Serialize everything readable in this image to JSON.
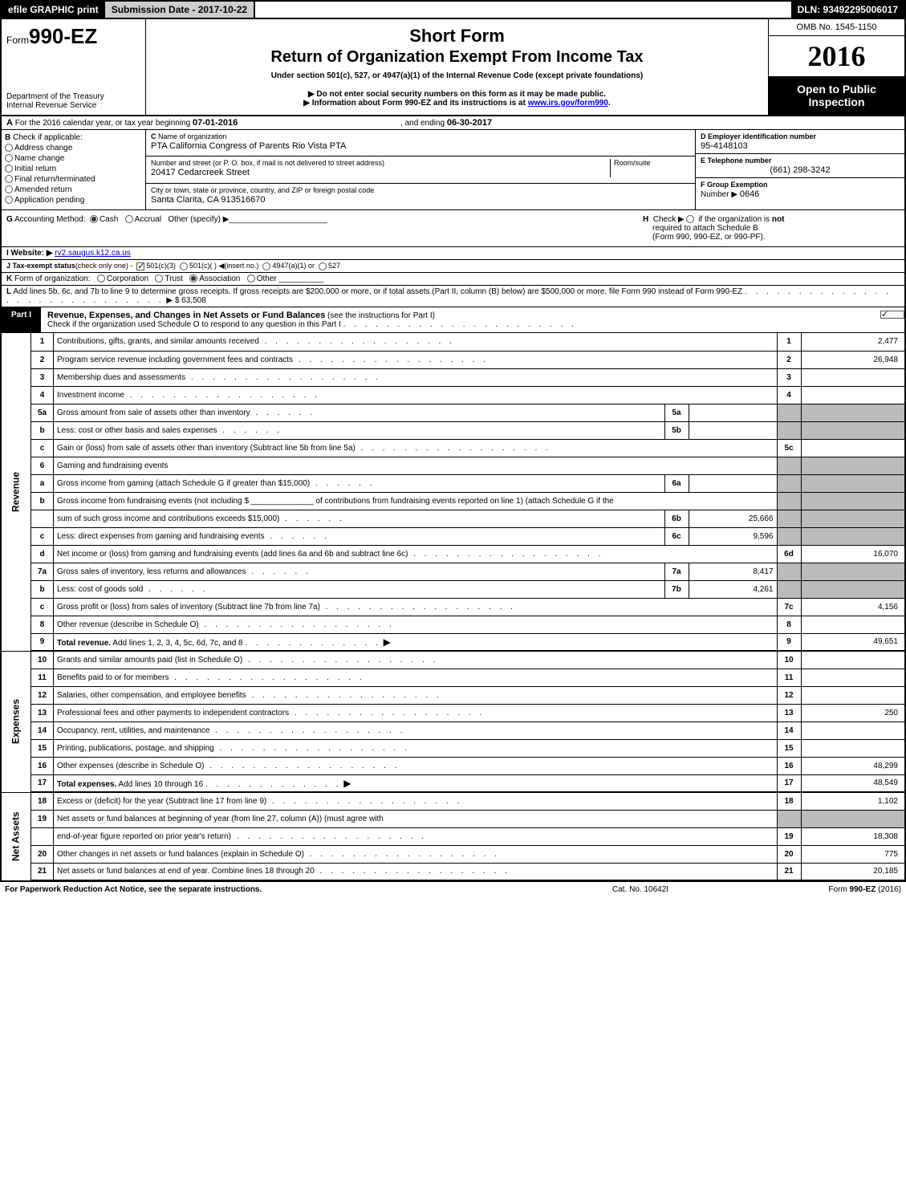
{
  "topbar": {
    "efile": "efile GRAPHIC print",
    "submission_label": "Submission Date - 2017-10-22",
    "dln": "DLN: 93492295006017"
  },
  "header": {
    "form_prefix": "Form",
    "form_number": "990-EZ",
    "dept1": "Department of the Treasury",
    "dept2": "Internal Revenue Service",
    "title1": "Short Form",
    "title2": "Return of Organization Exempt From Income Tax",
    "subtitle1": "Under section 501(c), 527, or 4947(a)(1) of the Internal Revenue Code (except private foundations)",
    "subtitle2a": "▶ Do not enter social security numbers on this form as it may be made public.",
    "subtitle2b": "▶ Information about Form 990-EZ and its instructions is at ",
    "subtitle2b_link": "www.irs.gov/form990",
    "subtitle2b_suffix": ".",
    "omb": "OMB No. 1545-1150",
    "year": "2016",
    "open1": "Open to Public",
    "open2": "Inspection"
  },
  "rowA": {
    "a_label": "A",
    "text1": "For the 2016 calendar year, or tax year beginning ",
    "begin": "07-01-2016",
    "text2": ", and ending ",
    "end": "06-30-2017"
  },
  "colB": {
    "label": "B",
    "heading": "Check if applicable:",
    "opts": [
      "Address change",
      "Name change",
      "Initial return",
      "Final return/terminated",
      "Amended return",
      "Application pending"
    ]
  },
  "colC": {
    "c_label": "C",
    "name_lbl": "Name of organization",
    "name_val": "PTA California Congress of Parents Rio Vista PTA",
    "street_lbl": "Number and street (or P. O. box, if mail is not delivered to street address)",
    "street_val": "20417 Cedarcreek Street",
    "room_lbl": "Room/suite",
    "city_lbl": "City or town, state or province, country, and ZIP or foreign postal code",
    "city_val": "Santa Clarita, CA  913516670"
  },
  "colDEF": {
    "d_lbl": "D Employer identification number",
    "d_val": "95-4148103",
    "e_lbl": "E Telephone number",
    "e_val": "(661) 298-3242",
    "f_lbl": "F Group Exemption",
    "f_lbl2": "Number  ▶",
    "f_val": "0646"
  },
  "rowG": {
    "g_label": "G",
    "g_text": "Accounting Method:",
    "g_cash": "Cash",
    "g_accrual": "Accrual",
    "g_other": "Other (specify) ▶",
    "h_label": "H",
    "h_text1": "Check ▶",
    "h_text2": "if the organization is ",
    "h_not": "not",
    "h_text3": "required to attach Schedule B",
    "h_text4": "(Form 990, 990-EZ, or 990-PF)."
  },
  "rowI": {
    "label": "I Website: ▶",
    "val": "rv2.saugus.k12.ca.us"
  },
  "rowJ": {
    "label": "J Tax-exempt status",
    "sub": "(check only one) -",
    "o1": "501(c)(3)",
    "o2": "501(c)(  ) ◀(insert no.)",
    "o3": "4947(a)(1) or",
    "o4": "527"
  },
  "rowK": {
    "label": "K",
    "text": "Form of organization:",
    "opts": [
      "Corporation",
      "Trust",
      "Association",
      "Other"
    ]
  },
  "rowL": {
    "label": "L",
    "text1": "Add lines 5b, 6c, and 7b to line 9 to determine gross receipts. If gross receipts are $200,000 or more, or if total assets (Part II, column (B) below) are $500,000 or more, file Form 990 instead of Form 990-EZ",
    "amt_label": "▶ $ 63,508"
  },
  "part1": {
    "tag": "Part I",
    "title": "Revenue, Expenses, and Changes in Net Assets or Fund Balances",
    "sub": "(see the instructions for Part I)",
    "check_text": "Check if the organization used Schedule O to respond to any question in this Part I"
  },
  "sideLabels": {
    "rev": "Revenue",
    "exp": "Expenses",
    "net": "Net Assets"
  },
  "lines": [
    {
      "n": "1",
      "d": "Contributions, gifts, grants, and similar amounts received",
      "num": "1",
      "amt": "2,477"
    },
    {
      "n": "2",
      "d": "Program service revenue including government fees and contracts",
      "num": "2",
      "amt": "26,948"
    },
    {
      "n": "3",
      "d": "Membership dues and assessments",
      "num": "3",
      "amt": ""
    },
    {
      "n": "4",
      "d": "Investment income",
      "num": "4",
      "amt": ""
    },
    {
      "n": "5a",
      "d": "Gross amount from sale of assets other than inventory",
      "sub": "5a",
      "subamt": "",
      "grey": true
    },
    {
      "n": "b",
      "d": "Less: cost or other basis and sales expenses",
      "sub": "5b",
      "subamt": "",
      "grey": true
    },
    {
      "n": "c",
      "d": "Gain or (loss) from sale of assets other than inventory (Subtract line 5b from line 5a)",
      "num": "5c",
      "amt": ""
    },
    {
      "n": "6",
      "d": "Gaming and fundraising events",
      "grey": true,
      "nonum": true
    },
    {
      "n": "a",
      "d": "Gross income from gaming (attach Schedule G if greater than $15,000)",
      "sub": "6a",
      "subamt": "",
      "grey": true
    },
    {
      "n": "b",
      "d": "Gross income from fundraising events (not including $ ______________ of contributions from fundraising events reported on line 1) (attach Schedule G if the",
      "grey": true,
      "nonum": true,
      "nosub": true
    },
    {
      "n": "",
      "d": "sum of such gross income and contributions exceeds $15,000)",
      "sub": "6b",
      "subamt": "25,666",
      "grey": true
    },
    {
      "n": "c",
      "d": "Less: direct expenses from gaming and fundraising events",
      "sub": "6c",
      "subamt": "9,596",
      "grey": true
    },
    {
      "n": "d",
      "d": "Net income or (loss) from gaming and fundraising events (add lines 6a and 6b and subtract line 6c)",
      "num": "6d",
      "amt": "16,070"
    },
    {
      "n": "7a",
      "d": "Gross sales of inventory, less returns and allowances",
      "sub": "7a",
      "subamt": "8,417",
      "grey": true
    },
    {
      "n": "b",
      "d": "Less: cost of goods sold",
      "sub": "7b",
      "subamt": "4,261",
      "grey": true
    },
    {
      "n": "c",
      "d": "Gross profit or (loss) from sales of inventory (Subtract line 7b from line 7a)",
      "num": "7c",
      "amt": "4,156"
    },
    {
      "n": "8",
      "d": "Other revenue (describe in Schedule O)",
      "num": "8",
      "amt": ""
    },
    {
      "n": "9",
      "d": "Total revenue. Add lines 1, 2, 3, 4, 5c, 6d, 7c, and 8",
      "num": "9",
      "amt": "49,651",
      "bold": true,
      "arrow": true,
      "b2": true
    }
  ],
  "expLines": [
    {
      "n": "10",
      "d": "Grants and similar amounts paid (list in Schedule O)",
      "num": "10",
      "amt": ""
    },
    {
      "n": "11",
      "d": "Benefits paid to or for members",
      "num": "11",
      "amt": ""
    },
    {
      "n": "12",
      "d": "Salaries, other compensation, and employee benefits",
      "num": "12",
      "amt": ""
    },
    {
      "n": "13",
      "d": "Professional fees and other payments to independent contractors",
      "num": "13",
      "amt": "250"
    },
    {
      "n": "14",
      "d": "Occupancy, rent, utilities, and maintenance",
      "num": "14",
      "amt": ""
    },
    {
      "n": "15",
      "d": "Printing, publications, postage, and shipping",
      "num": "15",
      "amt": ""
    },
    {
      "n": "16",
      "d": "Other expenses (describe in Schedule O)",
      "num": "16",
      "amt": "48,299"
    },
    {
      "n": "17",
      "d": "Total expenses. Add lines 10 through 16",
      "num": "17",
      "amt": "48,549",
      "bold": true,
      "arrow": true,
      "b2": true
    }
  ],
  "netLines": [
    {
      "n": "18",
      "d": "Excess or (deficit) for the year (Subtract line 17 from line 9)",
      "num": "18",
      "amt": "1,102"
    },
    {
      "n": "19",
      "d": "Net assets or fund balances at beginning of year (from line 27, column (A)) (must agree with",
      "grey": true,
      "nonum": true
    },
    {
      "n": "",
      "d": "end-of-year figure reported on prior year's return)",
      "num": "19",
      "amt": "18,308"
    },
    {
      "n": "20",
      "d": "Other changes in net assets or fund balances (explain in Schedule O)",
      "num": "20",
      "amt": "775"
    },
    {
      "n": "21",
      "d": "Net assets or fund balances at end of year. Combine lines 18 through 20",
      "num": "21",
      "amt": "20,185",
      "b2": true
    }
  ],
  "footer": {
    "left": "For Paperwork Reduction Act Notice, see the separate instructions.",
    "mid": "Cat. No. 10642I",
    "right_a": "Form ",
    "right_b": "990-EZ",
    "right_c": " (2016)"
  }
}
